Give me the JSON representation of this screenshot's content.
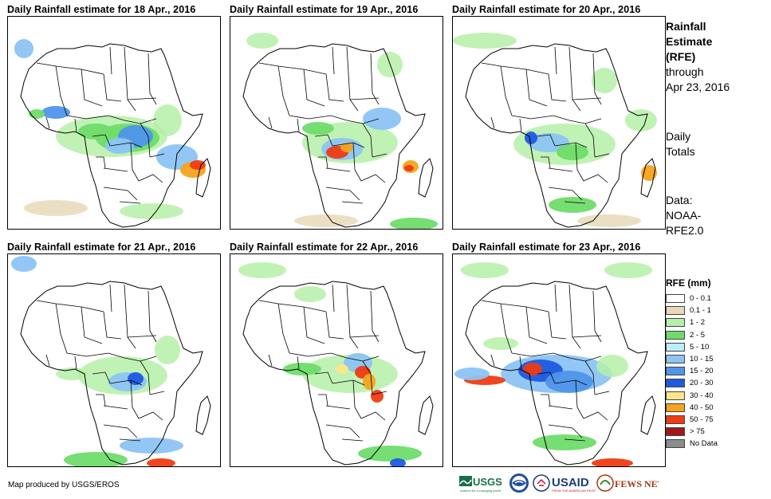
{
  "panels": [
    {
      "title": "Daily Rainfall estimate for 18 Apr., 2016"
    },
    {
      "title": "Daily Rainfall estimate for 19 Apr., 2016"
    },
    {
      "title": "Daily Rainfall estimate for 20 Apr., 2016"
    },
    {
      "title": "Daily Rainfall estimate for 21 Apr., 2016"
    },
    {
      "title": "Daily Rainfall estimate for 22 Apr., 2016"
    },
    {
      "title": "Daily Rainfall estimate for 23 Apr., 2016"
    }
  ],
  "side": {
    "line1": "Rainfall",
    "line2": "Estimate",
    "line3": "(RFE)",
    "line4": "through",
    "line5": "Apr 23, 2016",
    "totals1": "Daily",
    "totals2": "Totals",
    "data1": "Data:",
    "data2": "NOAA-",
    "data3": "RFE2.0"
  },
  "legend": {
    "title": "RFE (mm)",
    "items": [
      {
        "label": "0 - 0.1",
        "color": "#ffffff"
      },
      {
        "label": "0.1 - 1",
        "color": "#e8d9b8"
      },
      {
        "label": "1 - 2",
        "color": "#b6f0a8"
      },
      {
        "label": "2 - 5",
        "color": "#6fdc6a"
      },
      {
        "label": "5 - 10",
        "color": "#bdeef5"
      },
      {
        "label": "10 - 15",
        "color": "#8cc4f4"
      },
      {
        "label": "15 - 20",
        "color": "#4f95ea"
      },
      {
        "label": "20 - 30",
        "color": "#1e5ae0"
      },
      {
        "label": "30 - 40",
        "color": "#fde58a"
      },
      {
        "label": "40 - 50",
        "color": "#f6a31e"
      },
      {
        "label": "50 - 75",
        "color": "#ef3b12"
      },
      {
        "label": "> 75",
        "color": "#a1161a"
      },
      {
        "label": "No Data",
        "color": "#8c8c8c"
      }
    ]
  },
  "credit": "Map produced by USGS/EROS",
  "logos": {
    "usgs": "USGS",
    "usgs_tagline": "science for a changing world",
    "noaa": "NOAA",
    "usaid": "USAID",
    "usaid_tagline": "FROM THE AMERICAN PEOPLE",
    "fewsnet": "FEWS NET"
  }
}
